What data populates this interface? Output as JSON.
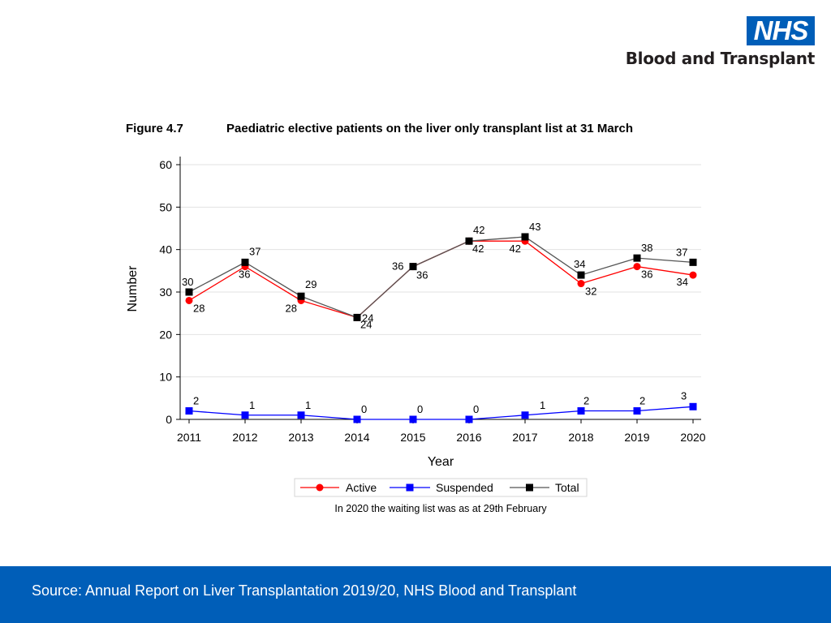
{
  "header": {
    "logo_text": "NHS",
    "org_name": "Blood and Transplant"
  },
  "figure": {
    "label": "Figure 4.7",
    "title": "Paediatric elective patients on the liver only transplant list at 31 March"
  },
  "chart_data": {
    "type": "line",
    "categories": [
      "2011",
      "2012",
      "2013",
      "2014",
      "2015",
      "2016",
      "2017",
      "2018",
      "2019",
      "2020"
    ],
    "series": [
      {
        "name": "Active",
        "color": "#ff0000",
        "line_color": "#ff0000",
        "marker": "circle",
        "values": [
          28,
          36,
          28,
          24,
          36,
          42,
          42,
          32,
          36,
          34
        ]
      },
      {
        "name": "Suspended",
        "color": "#0000ff",
        "line_color": "#0000ff",
        "marker": "square",
        "values": [
          2,
          1,
          1,
          0,
          0,
          0,
          1,
          2,
          2,
          3
        ]
      },
      {
        "name": "Total",
        "color": "#000000",
        "line_color": "#555555",
        "marker": "square",
        "values": [
          30,
          37,
          29,
          24,
          36,
          42,
          43,
          34,
          38,
          37
        ]
      }
    ],
    "xlabel": "Year",
    "ylabel": "Number",
    "ylim": [
      0,
      60
    ],
    "yticks": [
      0,
      10,
      20,
      30,
      40,
      50,
      60
    ],
    "grid": true,
    "legend_position": "bottom",
    "note": "In 2020 the waiting list was as at 29th February"
  },
  "footer": {
    "source": "Source: Annual Report on Liver Transplantation 2019/20, NHS Blood and Transplant"
  }
}
